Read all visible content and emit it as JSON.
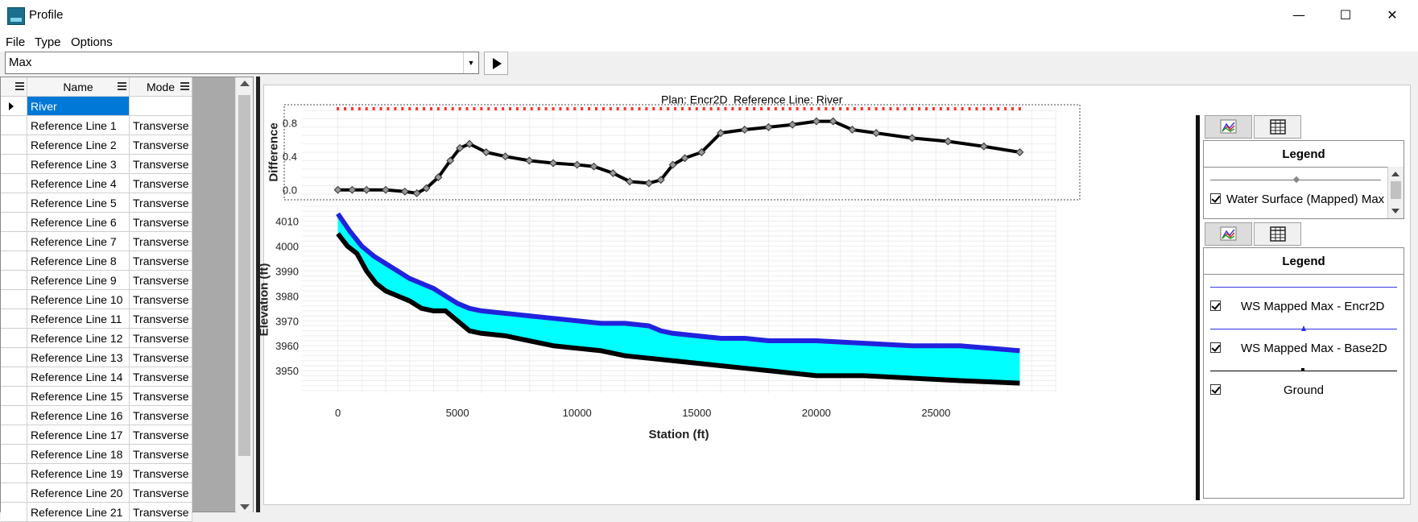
{
  "window": {
    "title": "Profile",
    "minimize": "—",
    "maximize": "☐",
    "close": "✕"
  },
  "menu": {
    "file": "File",
    "type": "Type",
    "options": "Options"
  },
  "toolbar": {
    "profile_value": "Max"
  },
  "grid": {
    "header": {
      "name": "Name",
      "mode": "Mode"
    },
    "rows": [
      {
        "name": "River",
        "mode": ""
      },
      {
        "name": "Reference Line 1",
        "mode": "Transverse"
      },
      {
        "name": "Reference Line 2",
        "mode": "Transverse"
      },
      {
        "name": "Reference Line 3",
        "mode": "Transverse"
      },
      {
        "name": "Reference Line 4",
        "mode": "Transverse"
      },
      {
        "name": "Reference Line 5",
        "mode": "Transverse"
      },
      {
        "name": "Reference Line 6",
        "mode": "Transverse"
      },
      {
        "name": "Reference Line 7",
        "mode": "Transverse"
      },
      {
        "name": "Reference Line 8",
        "mode": "Transverse"
      },
      {
        "name": "Reference Line 9",
        "mode": "Transverse"
      },
      {
        "name": "Reference Line 10",
        "mode": "Transverse"
      },
      {
        "name": "Reference Line 11",
        "mode": "Transverse"
      },
      {
        "name": "Reference Line 12",
        "mode": "Transverse"
      },
      {
        "name": "Reference Line 13",
        "mode": "Transverse"
      },
      {
        "name": "Reference Line 14",
        "mode": "Transverse"
      },
      {
        "name": "Reference Line 15",
        "mode": "Transverse"
      },
      {
        "name": "Reference Line 16",
        "mode": "Transverse"
      },
      {
        "name": "Reference Line 17",
        "mode": "Transverse"
      },
      {
        "name": "Reference Line 18",
        "mode": "Transverse"
      },
      {
        "name": "Reference Line 19",
        "mode": "Transverse"
      },
      {
        "name": "Reference Line 20",
        "mode": "Transverse"
      },
      {
        "name": "Reference Line 21",
        "mode": "Transverse"
      }
    ]
  },
  "plot_header": {
    "plan": "Plan: Encr2D",
    "reference": "Reference Line: River"
  },
  "legend_top": {
    "title": "Legend",
    "entries": [
      {
        "label": "Water Surface (Mapped) Max",
        "color": "#777777"
      }
    ]
  },
  "legend_bottom": {
    "title": "Legend",
    "entries": [
      {
        "label": "WS Mapped Max - Encr2D",
        "color": "#3a3ae0"
      },
      {
        "label": "WS Mapped Max - Base2D",
        "color": "#2e2ee8"
      },
      {
        "label": "Ground",
        "color": "#000000"
      }
    ]
  },
  "colors": {
    "encr": "#2222dd",
    "fill": "#00ffff",
    "ground": "#000000",
    "diff": "#000000",
    "marker": "#ff3030"
  },
  "chart_data": [
    {
      "type": "line",
      "ylabel": "Difference",
      "ylim": [
        -0.08,
        0.98
      ],
      "xlim": [
        -1500,
        30000
      ],
      "yticks": [
        0.0,
        0.4,
        0.8
      ],
      "grid": true,
      "series": [
        {
          "name": "Water Surface (Mapped) Max",
          "x": [
            0,
            600,
            1200,
            2000,
            2800,
            3300,
            3700,
            4200,
            4700,
            5100,
            5500,
            6200,
            7000,
            8000,
            9000,
            10000,
            10700,
            11500,
            12200,
            13000,
            13500,
            14000,
            14500,
            15200,
            16000,
            17000,
            18000,
            19000,
            20000,
            20700,
            21500,
            22500,
            24000,
            25500,
            27000,
            28500
          ],
          "y": [
            0.0,
            0.0,
            0.0,
            0.0,
            -0.02,
            -0.04,
            0.02,
            0.15,
            0.35,
            0.5,
            0.55,
            0.45,
            0.4,
            0.35,
            0.32,
            0.3,
            0.28,
            0.2,
            0.1,
            0.08,
            0.12,
            0.3,
            0.38,
            0.45,
            0.68,
            0.72,
            0.75,
            0.78,
            0.82,
            0.82,
            0.72,
            0.68,
            0.62,
            0.58,
            0.52,
            0.45
          ]
        }
      ]
    },
    {
      "type": "area",
      "xlabel": "Station (ft)",
      "ylabel": "Elevation (ft)",
      "xlim": [
        -1500,
        30000
      ],
      "ylim": [
        3941,
        4016
      ],
      "xticks": [
        0,
        5000,
        10000,
        15000,
        20000,
        25000
      ],
      "yticks": [
        3950,
        3960,
        3970,
        3980,
        3990,
        4000,
        4010
      ],
      "grid": true,
      "series": [
        {
          "name": "WS Mapped Max - Encr2D",
          "x": [
            0,
            500,
            1000,
            1500,
            2000,
            2500,
            3000,
            3500,
            4000,
            4500,
            5000,
            5500,
            6000,
            7000,
            8000,
            9000,
            10000,
            11000,
            12000,
            13000,
            13500,
            14000,
            15000,
            16000,
            17000,
            18000,
            20000,
            22000,
            24000,
            26000,
            28500
          ],
          "y": [
            4013,
            4006,
            4000,
            3996,
            3993,
            3990,
            3987,
            3985,
            3983,
            3980,
            3977,
            3975,
            3974,
            3973,
            3972,
            3971,
            3970,
            3969,
            3969,
            3968,
            3966,
            3965,
            3964,
            3963,
            3963,
            3962,
            3962,
            3961,
            3960,
            3960,
            3958
          ]
        },
        {
          "name": "Ground",
          "x": [
            0,
            400,
            800,
            1200,
            1600,
            2000,
            2500,
            3000,
            3500,
            4000,
            4500,
            5000,
            5500,
            6000,
            7000,
            8000,
            9000,
            10000,
            11000,
            12000,
            13000,
            14000,
            15000,
            16000,
            17000,
            18000,
            19000,
            20000,
            22000,
            24000,
            26000,
            28500
          ],
          "y": [
            4005,
            4000,
            3997,
            3990,
            3985,
            3982,
            3980,
            3978,
            3975,
            3974,
            3974,
            3970,
            3966,
            3965,
            3964,
            3962,
            3960,
            3959,
            3958,
            3956,
            3955,
            3954,
            3953,
            3952,
            3951,
            3950,
            3949,
            3948,
            3948,
            3947,
            3946,
            3945
          ]
        }
      ]
    }
  ]
}
